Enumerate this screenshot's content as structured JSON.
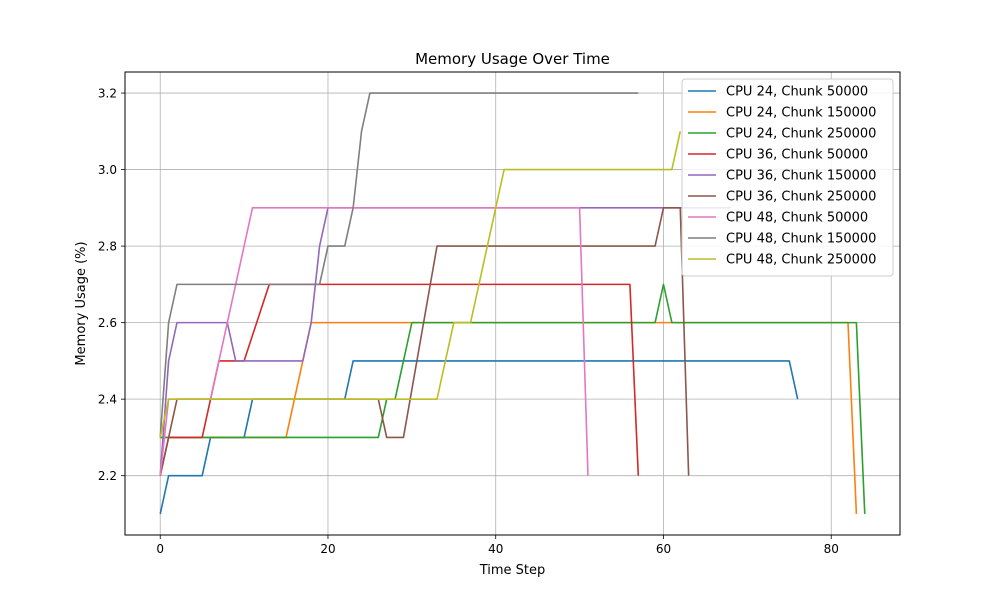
{
  "chart_data": {
    "type": "line",
    "title": "Memory Usage Over Time",
    "xlabel": "Time Step",
    "ylabel": "Memory Usage (%)",
    "xlim": [
      -4.2,
      88.2
    ],
    "ylim": [
      2.045,
      3.255
    ],
    "xticks": [
      0,
      20,
      40,
      60,
      80
    ],
    "yticks": [
      2.2,
      2.4,
      2.6,
      2.8,
      3.0,
      3.2
    ],
    "ytick_labels": [
      "2.2",
      "2.4",
      "2.6",
      "2.8",
      "3.0",
      "3.2"
    ],
    "grid": true,
    "legend_position": "top-right",
    "series": [
      {
        "name": "CPU 24, Chunk 50000",
        "color": "#1f77b4",
        "x": [
          0,
          1,
          5,
          6,
          10,
          11,
          22,
          23,
          75,
          76
        ],
        "y": [
          2.1,
          2.2,
          2.2,
          2.3,
          2.3,
          2.4,
          2.4,
          2.5,
          2.5,
          2.4
        ]
      },
      {
        "name": "CPU 24, Chunk 150000",
        "color": "#ff7f0e",
        "x": [
          0,
          1,
          15,
          17,
          18,
          82,
          83
        ],
        "y": [
          2.3,
          2.3,
          2.3,
          2.5,
          2.6,
          2.6,
          2.1
        ]
      },
      {
        "name": "CPU 24, Chunk 250000",
        "color": "#2ca02c",
        "x": [
          0,
          1,
          26,
          27,
          28,
          30,
          59,
          60,
          61,
          83,
          84
        ],
        "y": [
          2.3,
          2.3,
          2.3,
          2.4,
          2.4,
          2.6,
          2.6,
          2.7,
          2.6,
          2.6,
          2.1
        ]
      },
      {
        "name": "CPU 36, Chunk 50000",
        "color": "#d62728",
        "x": [
          0,
          1,
          5,
          7,
          10,
          13,
          56,
          57
        ],
        "y": [
          2.2,
          2.3,
          2.3,
          2.5,
          2.5,
          2.7,
          2.7,
          2.2
        ]
      },
      {
        "name": "CPU 36, Chunk 150000",
        "color": "#9467bd",
        "x": [
          0,
          1,
          2,
          8,
          9,
          17,
          18,
          19,
          20,
          68
        ],
        "y": [
          2.2,
          2.5,
          2.6,
          2.6,
          2.5,
          2.5,
          2.6,
          2.8,
          2.9,
          2.9
        ]
      },
      {
        "name": "CPU 36, Chunk 250000",
        "color": "#8c564b",
        "x": [
          0,
          2,
          26,
          27,
          29,
          33,
          59,
          60,
          62,
          63
        ],
        "y": [
          2.2,
          2.4,
          2.4,
          2.3,
          2.3,
          2.8,
          2.8,
          2.9,
          2.9,
          2.2
        ]
      },
      {
        "name": "CPU 48, Chunk 50000",
        "color": "#e377c2",
        "x": [
          0,
          1,
          6,
          11,
          50,
          51
        ],
        "y": [
          2.2,
          2.4,
          2.4,
          2.9,
          2.9,
          2.2
        ]
      },
      {
        "name": "CPU 48, Chunk 150000",
        "color": "#7f7f7f",
        "x": [
          0,
          1,
          2,
          19,
          20,
          22,
          23,
          24,
          25,
          57
        ],
        "y": [
          2.3,
          2.6,
          2.7,
          2.7,
          2.8,
          2.8,
          2.9,
          3.1,
          3.2,
          3.2
        ]
      },
      {
        "name": "CPU 48, Chunk 250000",
        "color": "#bcbd22",
        "x": [
          0,
          1,
          33,
          35,
          37,
          41,
          61,
          62
        ],
        "y": [
          2.3,
          2.4,
          2.4,
          2.6,
          2.6,
          3.0,
          3.0,
          3.1
        ]
      }
    ]
  }
}
